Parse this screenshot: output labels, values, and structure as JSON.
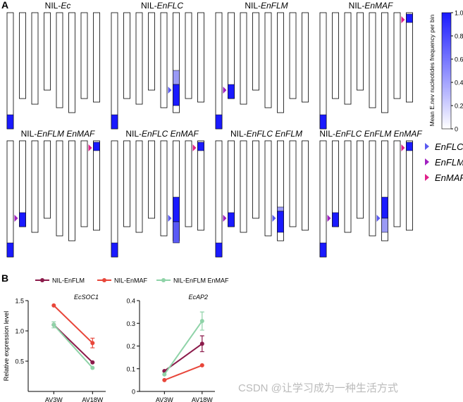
{
  "panel_labels": [
    "A",
    "B"
  ],
  "genotype_panels": [
    {
      "prefix": "NIL-",
      "name": "Ec"
    },
    {
      "prefix": "NIL-",
      "name": "EnFLC"
    },
    {
      "prefix": "NIL-",
      "name": "EnFLM"
    },
    {
      "prefix": "NIL-",
      "name": "EnMAF"
    },
    {
      "prefix": "NIL-",
      "name": "EnFLM EnMAF"
    },
    {
      "prefix": "NIL-",
      "name": "EnFLC EnMAF"
    },
    {
      "prefix": "NIL-",
      "name": "EnFLC EnFLM"
    },
    {
      "prefix": "NIL-",
      "name": "EnFLC EnFLM EnMAF"
    }
  ],
  "colorbar": {
    "label": "Mean E.nev nucleotides frequency per bin",
    "ticks": [
      0,
      0.2,
      0.4,
      0.6,
      0.8,
      {
        "value": 1,
        "label": "1.0"
      }
    ],
    "lim": [
      0,
      1
    ]
  },
  "gene_legend": [
    {
      "name": "EnFLC",
      "color": "#5a5af0"
    },
    {
      "name": "EnFLM",
      "color": "#a020c0"
    },
    {
      "name": "EnMAF",
      "color": "#e0208a"
    }
  ],
  "chart_data": [
    {
      "type": "line",
      "title": "EcSOC1",
      "ylabel": "Relative expression level",
      "categories": [
        "AV3W",
        "AV18W"
      ],
      "ylim": [
        0,
        1.5
      ],
      "yticks": [
        {
          "value": 0.5,
          "label": "0.5"
        },
        {
          "value": 1,
          "label": "1.0"
        },
        {
          "value": 1.5,
          "label": "1.5"
        }
      ],
      "series": [
        {
          "name": "NIL-EnFLM",
          "color": "#8b1a4a",
          "values": [
            1.1,
            0.48
          ],
          "errors": [
            0,
            0
          ]
        },
        {
          "name": "NIL-EnMAF",
          "color": "#e8463a",
          "values": [
            1.42,
            0.8
          ],
          "errors": [
            0,
            0.08
          ]
        },
        {
          "name": "NIL-EnFLM EnMAF",
          "color": "#8fd3a8",
          "values": [
            1.1,
            0.39
          ],
          "errors": [
            0.05,
            0
          ]
        }
      ]
    },
    {
      "type": "line",
      "title": "EcAP2",
      "categories": [
        "AV3W",
        "AV18W"
      ],
      "ylim": [
        0,
        0.4
      ],
      "yticks": [
        0,
        0.1,
        0.2,
        0.3,
        0.4
      ],
      "series": [
        {
          "name": "NIL-EnFLM",
          "color": "#8b1a4a",
          "values": [
            0.09,
            0.21
          ],
          "errors": [
            0,
            0.035
          ]
        },
        {
          "name": "NIL-EnMAF",
          "color": "#e8463a",
          "values": [
            0.05,
            0.115
          ],
          "errors": [
            0,
            0
          ]
        },
        {
          "name": "NIL-EnFLM EnMAF",
          "color": "#8fd3a8",
          "values": [
            0.075,
            0.31
          ],
          "errors": [
            0,
            0.04
          ]
        }
      ]
    }
  ],
  "watermark": "CSDN @让学习成为一种生活方式"
}
